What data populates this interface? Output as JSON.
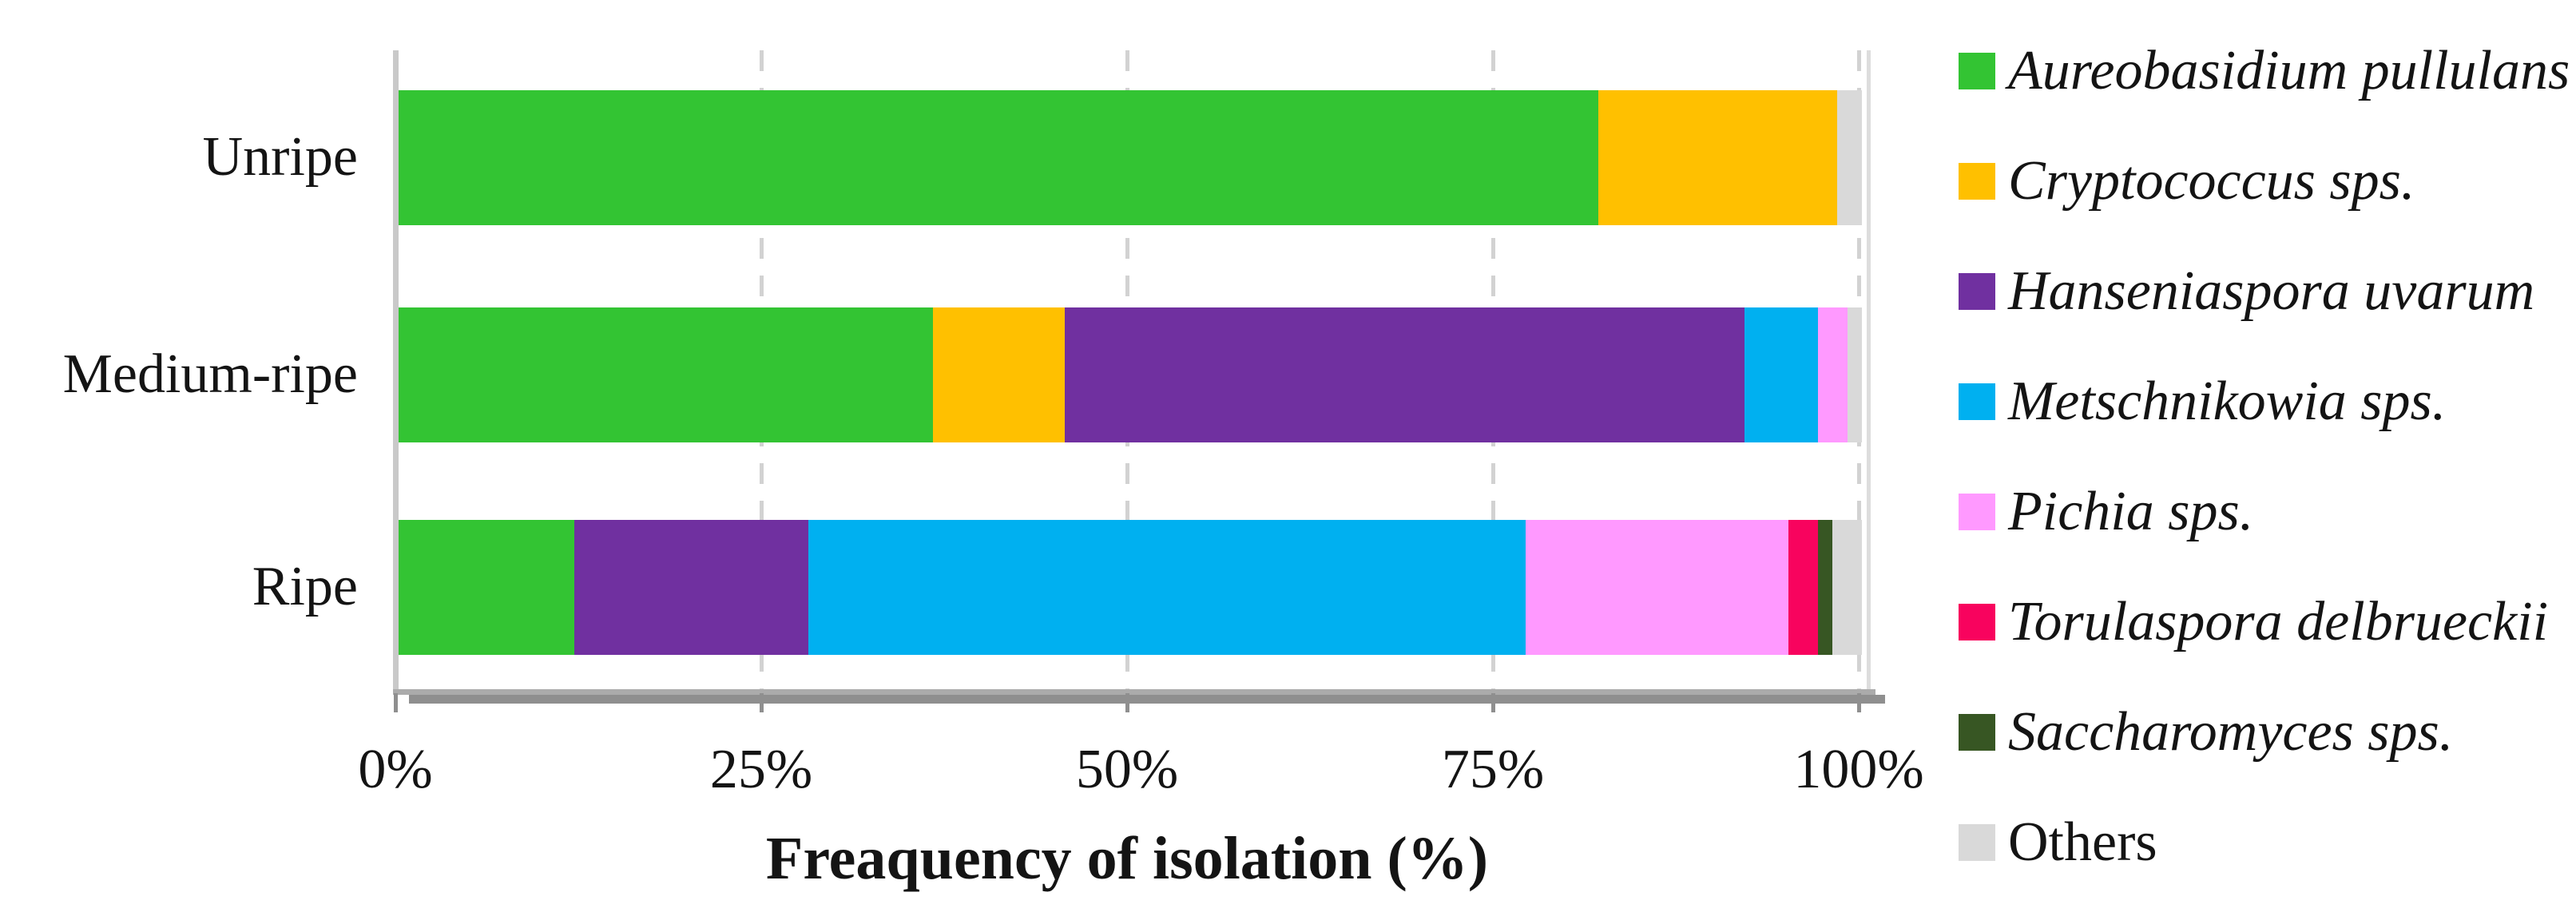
{
  "chart_data": {
    "type": "bar",
    "orientation": "horizontal",
    "stacked": true,
    "categories": [
      "Unripe",
      "Medium-ripe",
      "Ripe"
    ],
    "series": [
      {
        "name": "Aureobasidium pullulans",
        "color": "#33C433",
        "italic": true,
        "values": [
          82,
          36.5,
          12
        ]
      },
      {
        "name": "Cryptococcus sps.",
        "color": "#FFC000",
        "italic": true,
        "values": [
          16.3,
          9,
          0
        ]
      },
      {
        "name": "Hanseniaspora uvarum",
        "color": "#7030A0",
        "italic": true,
        "values": [
          0,
          46.5,
          16
        ]
      },
      {
        "name": "Metschnikowia sps.",
        "color": "#00B0F0",
        "italic": true,
        "values": [
          0,
          5,
          49
        ]
      },
      {
        "name": "Pichia sps.",
        "color": "#FF99FF",
        "italic": true,
        "values": [
          0,
          2,
          18
        ]
      },
      {
        "name": "Torulaspora delbrueckii",
        "color": "#F8035E",
        "italic": true,
        "values": [
          0,
          0,
          2
        ]
      },
      {
        "name": "Saccharomyces sps.",
        "color": "#375623",
        "italic": true,
        "values": [
          0,
          0,
          1
        ]
      },
      {
        "name": "Others",
        "color": "#D9D9D9",
        "italic": false,
        "values": [
          1.7,
          1,
          2
        ]
      }
    ],
    "xlabel": "Freaquency of isolation (%)",
    "x_ticks": [
      0,
      25,
      50,
      75,
      100
    ],
    "x_tick_labels": [
      "0%",
      "25%",
      "50%",
      "75%",
      "100%"
    ],
    "xlim": [
      0,
      100
    ],
    "grid": "dashed-vertical",
    "legend_position": "right"
  }
}
